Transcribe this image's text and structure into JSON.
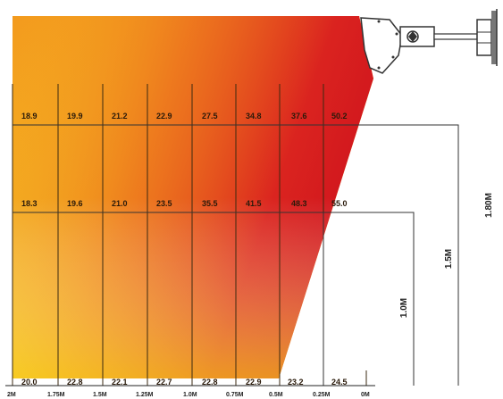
{
  "rows": [
    [
      "18.9",
      "19.9",
      "21.2",
      "22.9",
      "27.5",
      "34.8",
      "37.6",
      "50.2"
    ],
    [
      "18.3",
      "19.6",
      "21.0",
      "23.5",
      "35.5",
      "41.5",
      "48.3",
      "55.0"
    ],
    [
      "20.0",
      "22.8",
      "22.1",
      "22.7",
      "22.8",
      "22.9",
      "23.2",
      "24.5"
    ]
  ],
  "axis_labels": [
    "2M",
    "1.75M",
    "1.5M",
    "1.25M",
    "1.0M",
    "0.75M",
    "0.5M",
    "0.25M",
    "0M"
  ],
  "height_labels": [
    "1.0M",
    "1.5M",
    "1.80M"
  ],
  "colors": {
    "hot": "#d7191c",
    "mid": "#ef6a1a",
    "warm": "#f7a21a",
    "cool": "#f9d21a",
    "line": "#333333"
  },
  "icons": [
    "heater-unit-icon",
    "wall-bracket-icon"
  ]
}
